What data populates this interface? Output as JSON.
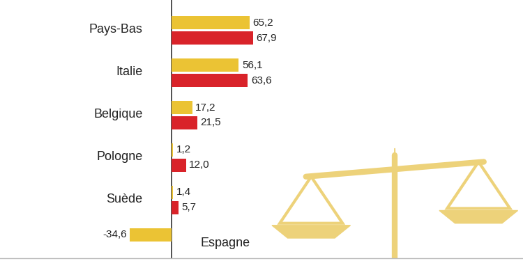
{
  "chart_data": {
    "type": "bar",
    "orientation": "horizontal",
    "categories": [
      "Pays-Bas",
      "Italie",
      "Belgique",
      "Pologne",
      "Suède",
      "Espagne"
    ],
    "series": [
      {
        "color": "#EBC334",
        "values": [
          65.2,
          56.1,
          17.2,
          1.2,
          1.4,
          -34.6
        ],
        "value_labels": [
          "65,2",
          "56,1",
          "17,2",
          "1,2",
          "1,4",
          "-34,6"
        ]
      },
      {
        "color": "#D9232A",
        "values": [
          67.9,
          63.6,
          21.5,
          12.0,
          5.7,
          null
        ],
        "value_labels": [
          "67,9",
          "63,6",
          "21,5",
          "12,0",
          "5,7",
          null
        ]
      }
    ],
    "xlim": [
      -143,
      293
    ],
    "data_labels": true,
    "grid": false
  }
}
